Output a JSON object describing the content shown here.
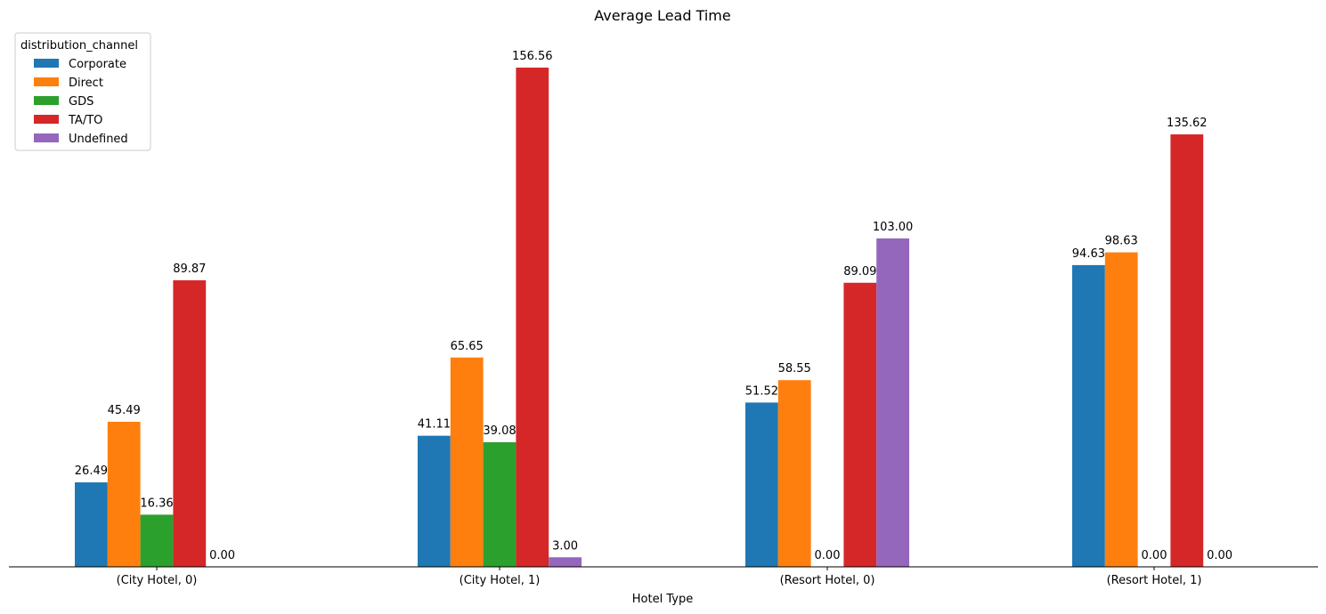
{
  "chart_data": {
    "type": "bar",
    "title": "Average Lead Time",
    "xlabel": "Hotel Type",
    "ylabel": "",
    "ylim": [
      0,
      168
    ],
    "categories": [
      "(City Hotel, 0)",
      "(City Hotel, 1)",
      "(Resort Hotel, 0)",
      "(Resort Hotel, 1)"
    ],
    "legend": {
      "title": "distribution_channel",
      "placement": "top-left"
    },
    "series": [
      {
        "name": "Corporate",
        "color": "#1f77b4",
        "values": [
          26.49,
          41.11,
          51.52,
          94.63
        ],
        "labels": [
          "26.49",
          "41.11",
          "51.52",
          "94.63"
        ]
      },
      {
        "name": "Direct",
        "color": "#ff7f0e",
        "values": [
          45.49,
          65.65,
          58.55,
          98.63
        ],
        "labels": [
          "45.49",
          "65.65",
          "58.55",
          "98.63"
        ]
      },
      {
        "name": "GDS",
        "color": "#2ca02c",
        "values": [
          16.36,
          39.08,
          0.0,
          0.0
        ],
        "labels": [
          "16.36",
          "39.08",
          "0.00",
          "0.00"
        ]
      },
      {
        "name": "TA/TO",
        "color": "#d62728",
        "values": [
          89.87,
          156.56,
          89.09,
          135.62
        ],
        "labels": [
          "89.87",
          "156.56",
          "89.09",
          "135.62"
        ]
      },
      {
        "name": "Undefined",
        "color": "#9467bd",
        "values": [
          0.0,
          3.0,
          103.0,
          0.0
        ],
        "labels": [
          "0.00",
          "3.00",
          "103.00",
          "0.00"
        ]
      }
    ],
    "grid": false
  }
}
